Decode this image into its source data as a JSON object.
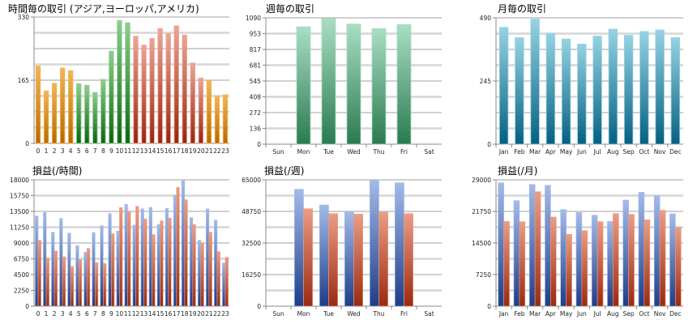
{
  "chart_data": [
    {
      "id": "hourly-trades",
      "type": "bar",
      "title": "時間毎の取引 (アジア,ヨーロッパ,アメリカ)",
      "categories": [
        "0",
        "1",
        "2",
        "3",
        "4",
        "5",
        "6",
        "7",
        "8",
        "9",
        "10",
        "11",
        "12",
        "13",
        "14",
        "15",
        "16",
        "17",
        "18",
        "19",
        "20",
        "21",
        "22",
        "23"
      ],
      "values": [
        202,
        137,
        157,
        197,
        190,
        156,
        152,
        133,
        167,
        241,
        321,
        315,
        280,
        257,
        274,
        300,
        287,
        307,
        283,
        210,
        171,
        164,
        123,
        127
      ],
      "bar_groups": [
        "asia",
        "asia",
        "asia",
        "asia",
        "asia",
        "europe",
        "europe",
        "europe",
        "europe",
        "europe",
        "europe",
        "europe",
        "america",
        "america",
        "america",
        "america",
        "america",
        "america",
        "america",
        "america",
        "america",
        "asia",
        "asia",
        "asia"
      ],
      "colors": {
        "asia": [
          "#f2b655",
          "#b86a00"
        ],
        "europe": [
          "#8ccf8c",
          "#0a6510"
        ],
        "america": [
          "#eda595",
          "#9a240c"
        ]
      },
      "ylim": [
        0,
        330
      ],
      "yticks": [
        0,
        165,
        330
      ],
      "grid": true
    },
    {
      "id": "weekly-trades",
      "type": "bar",
      "title": "週毎の取引",
      "categories": [
        "Sun",
        "Mon",
        "Tue",
        "Wed",
        "Thu",
        "Fri",
        "Sat"
      ],
      "values": [
        0,
        1013,
        1085,
        1036,
        997,
        1032,
        0
      ],
      "colors": {
        "default": [
          "#a9dec3",
          "#2a7a50"
        ]
      },
      "ylim": [
        0,
        1090
      ],
      "yticks": [
        0,
        136,
        272,
        408,
        545,
        681,
        817,
        953,
        1090
      ],
      "grid": true
    },
    {
      "id": "monthly-trades",
      "type": "bar",
      "title": "月毎の取引",
      "categories": [
        "Jan",
        "Feb",
        "Mar",
        "Apr",
        "May",
        "Jun",
        "Jul",
        "Aug",
        "Sep",
        "Oct",
        "Nov",
        "Dec"
      ],
      "values": [
        453,
        413,
        485,
        430,
        408,
        388,
        419,
        446,
        422,
        437,
        443,
        413
      ],
      "colors": {
        "default": [
          "#95d3e3",
          "#066080"
        ]
      },
      "ylim": [
        0,
        490
      ],
      "yticks": [
        0,
        245,
        490
      ],
      "grid": true
    },
    {
      "id": "hourly-pnl",
      "type": "bar",
      "title": "損益(/時間)",
      "categories": [
        "0",
        "1",
        "2",
        "3",
        "4",
        "5",
        "6",
        "7",
        "8",
        "9",
        "10",
        "11",
        "12",
        "13",
        "14",
        "15",
        "16",
        "17",
        "18",
        "19",
        "20",
        "21",
        "22",
        "23"
      ],
      "series": [
        {
          "values": [
            12850,
            13350,
            10540,
            12500,
            10420,
            8620,
            7690,
            10500,
            11460,
            13190,
            10690,
            14500,
            11540,
            13880,
            14080,
            11650,
            13920,
            15810,
            17880,
            12620,
            9380,
            13880,
            12270,
            6150
          ],
          "colors": [
            "#a3bbe9",
            "#1e3d88"
          ]
        },
        {
          "values": [
            9380,
            6850,
            7850,
            7040,
            5650,
            6620,
            8230,
            6190,
            6080,
            10310,
            14040,
            13540,
            14230,
            12420,
            10190,
            12150,
            12540,
            16920,
            15150,
            11620,
            9040,
            10540,
            7770,
            6960
          ],
          "colors": [
            "#eb9d85",
            "#9a2a10"
          ]
        }
      ],
      "ylim": [
        0,
        18000
      ],
      "yticks": [
        0,
        2250,
        4500,
        6750,
        9000,
        11250,
        13500,
        15750,
        18000
      ],
      "grid": true
    },
    {
      "id": "weekly-pnl",
      "type": "bar",
      "title": "損益(/週)",
      "categories": [
        "Sun",
        "Mon",
        "Tue",
        "Wed",
        "Thu",
        "Fri",
        "Sat"
      ],
      "series": [
        {
          "values": [
            0,
            60140,
            52080,
            48610,
            64900,
            63470,
            0
          ],
          "colors": [
            "#a3bbe9",
            "#1e3d88"
          ]
        },
        {
          "values": [
            0,
            50140,
            47640,
            47360,
            48330,
            47640,
            0
          ],
          "colors": [
            "#eb9d85",
            "#9a2a10"
          ]
        }
      ],
      "ylim": [
        0,
        65000
      ],
      "yticks": [
        0,
        16250,
        32500,
        48750,
        65000
      ],
      "grid": true
    },
    {
      "id": "monthly-pnl",
      "type": "bar",
      "title": "損益(/月)",
      "categories": [
        "Jan",
        "Feb",
        "Mar",
        "Apr",
        "May",
        "Jun",
        "Jul",
        "Aug",
        "Sep",
        "Oct",
        "Nov",
        "Dec"
      ],
      "series": [
        {
          "values": [
            28320,
            24230,
            27940,
            27760,
            22180,
            21500,
            20880,
            19460,
            24350,
            26150,
            25340,
            21190
          ],
          "colors": [
            "#a3bbe9",
            "#1e3d88"
          ]
        },
        {
          "values": [
            19460,
            19390,
            26270,
            20450,
            16480,
            17350,
            19390,
            21250,
            21070,
            19830,
            22000,
            18090
          ],
          "colors": [
            "#eb9d85",
            "#9a2a10"
          ]
        }
      ],
      "ylim": [
        0,
        29000
      ],
      "yticks": [
        0,
        7250,
        14500,
        21750,
        29000
      ],
      "grid": true
    }
  ]
}
